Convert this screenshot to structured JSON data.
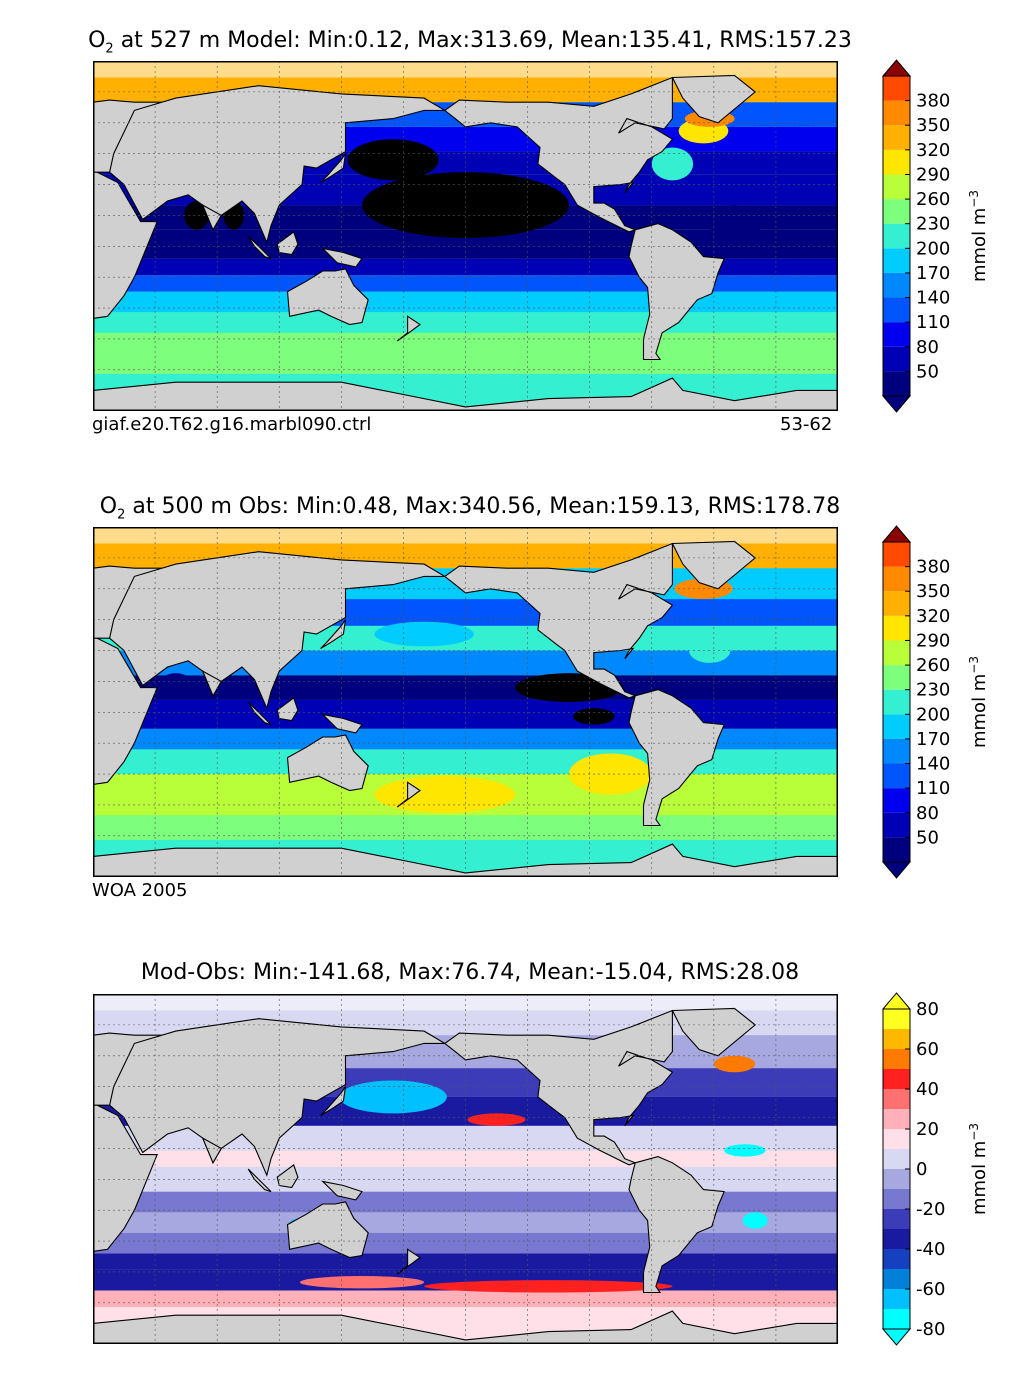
{
  "colors": {
    "land": "#d0d0d0",
    "coast": "#000000",
    "abs_levels": [
      "#000000",
      "#00007f",
      "#0000b4",
      "#0000ee",
      "#0055ff",
      "#0088ff",
      "#00ccff",
      "#35f0d0",
      "#7dff7d",
      "#b8ff3a",
      "#ffe600",
      "#ffb000",
      "#ff8a00",
      "#ff4a00",
      "#e00000",
      "#8b0000"
    ],
    "diff_levels": [
      "#00ffff",
      "#00c0ff",
      "#0080d8",
      "#1540c0",
      "#1a1aa0",
      "#3c3cb8",
      "#7878d0",
      "#a8a8e0",
      "#d8d8f2",
      "#ffe0e8",
      "#ffb0b8",
      "#ff7070",
      "#ff2020",
      "#ff7a00",
      "#ffb800",
      "#ffff20"
    ]
  },
  "panels": [
    {
      "title_prefix": "O",
      "title_sub": "2",
      "title_rest": " at 527 m Model: Min:0.12, Max:313.69, Mean:135.41, RMS:157.23",
      "left_note": "giaf.e20.T62.g16.marbl090.ctrl",
      "right_note": "53-62",
      "colorbar": {
        "ticks": [
          "380",
          "350",
          "320",
          "290",
          "260",
          "230",
          "200",
          "170",
          "140",
          "110",
          "80",
          "50"
        ],
        "unit": "mmol m",
        "unit_sup": "−3"
      }
    },
    {
      "title_prefix": "O",
      "title_sub": "2",
      "title_rest": " at 500 m Obs: Min:0.48, Max:340.56, Mean:159.13, RMS:178.78",
      "left_note": "WOA 2005",
      "colorbar": {
        "ticks": [
          "380",
          "350",
          "320",
          "290",
          "260",
          "230",
          "200",
          "170",
          "140",
          "110",
          "80",
          "50"
        ],
        "unit": "mmol m",
        "unit_sup": "−3"
      }
    },
    {
      "title": "Mod-Obs: Min:-141.68, Max:76.74, Mean:-15.04, RMS:28.08",
      "colorbar": {
        "ticks": [
          "80",
          "60",
          "40",
          "20",
          "0",
          "-20",
          "-40",
          "-60",
          "-80"
        ],
        "unit": "mmol m",
        "unit_sup": "−3"
      }
    }
  ],
  "chart_data": [
    {
      "type": "heatmap",
      "variable": "O₂",
      "depth": "527 m",
      "source": "Model",
      "stats": {
        "min": 0.12,
        "max": 313.69,
        "mean": 135.41,
        "rms": 157.23
      },
      "colorbar_ticks": [
        50,
        80,
        110,
        140,
        170,
        200,
        230,
        260,
        290,
        320,
        350,
        380
      ],
      "units": "mmol m^-3",
      "left_note": "giaf.e20.T62.g16.marbl090.ctrl",
      "right_note": "53-62"
    },
    {
      "type": "heatmap",
      "variable": "O₂",
      "depth": "500 m",
      "source": "Obs",
      "stats": {
        "min": 0.48,
        "max": 340.56,
        "mean": 159.13,
        "rms": 178.78
      },
      "colorbar_ticks": [
        50,
        80,
        110,
        140,
        170,
        200,
        230,
        260,
        290,
        320,
        350,
        380
      ],
      "units": "mmol m^-3",
      "left_note": "WOA 2005"
    },
    {
      "type": "heatmap",
      "variable": "Mod-Obs",
      "stats": {
        "min": -141.68,
        "max": 76.74,
        "mean": -15.04,
        "rms": 28.08
      },
      "colorbar_ticks": [
        -80,
        -60,
        -40,
        -20,
        0,
        20,
        40,
        60,
        80
      ],
      "units": "mmol m^-3"
    }
  ]
}
